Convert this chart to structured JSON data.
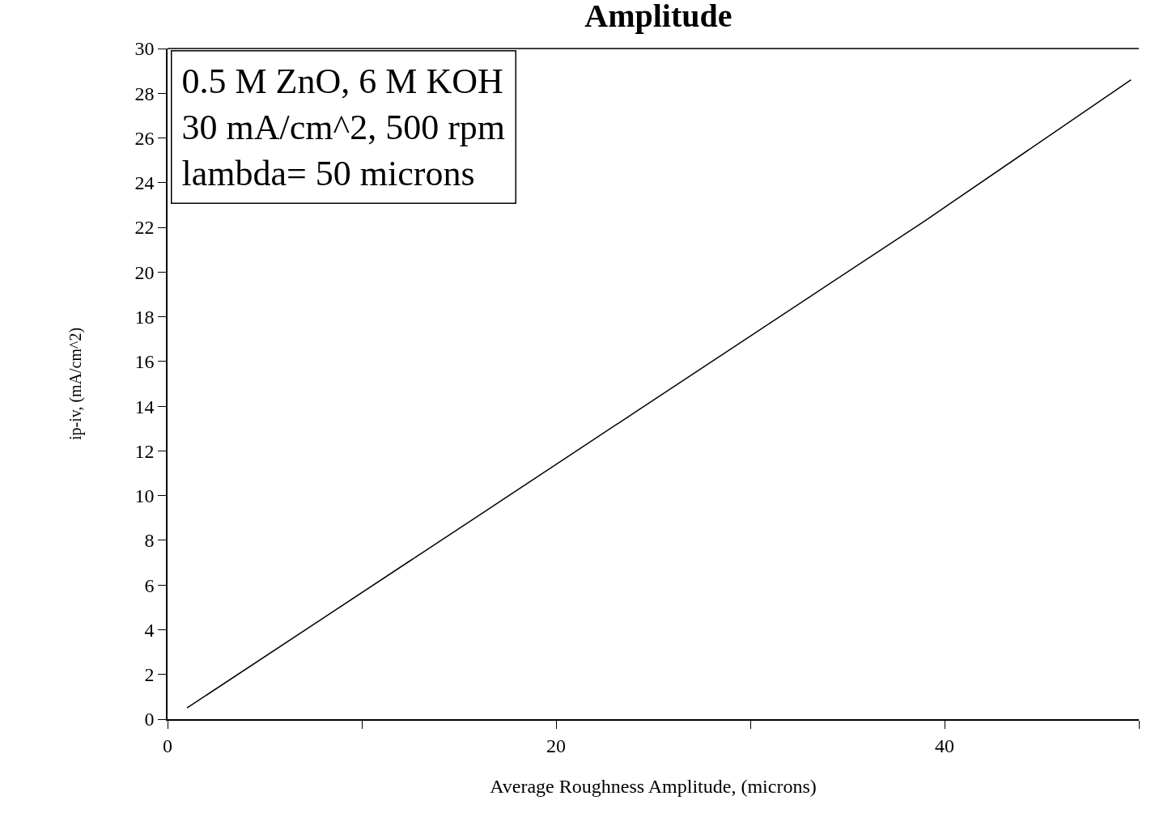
{
  "chart_data": {
    "type": "line",
    "title": "Amplitude",
    "xlabel": "Average Roughness Amplitude, (microns)",
    "ylabel": "ip-iv, (mA/cm^2)",
    "annotations": [
      "0.5 M ZnO, 6 M KOH\n30 mA/cm^2, 500 rpm\nlambda= 50 microns"
    ],
    "series": [
      {
        "color": "#000000",
        "x": [
          1,
          16,
          39,
          49.6
        ],
        "values": [
          0.5,
          9.1,
          22.3,
          28.6
        ]
      }
    ],
    "xlim": [
      0,
      50
    ],
    "xticks": [
      0,
      {
        "value": 10,
        "label": null
      },
      20,
      {
        "value": 30,
        "label": null
      },
      40,
      {
        "value": 50,
        "label": null
      }
    ],
    "ylim": [
      0,
      30
    ],
    "yticks": [
      0,
      2,
      4,
      6,
      8,
      10,
      12,
      14,
      16,
      18,
      20,
      22,
      24,
      26,
      28,
      30
    ],
    "marker": "none",
    "line_style": "solid"
  }
}
